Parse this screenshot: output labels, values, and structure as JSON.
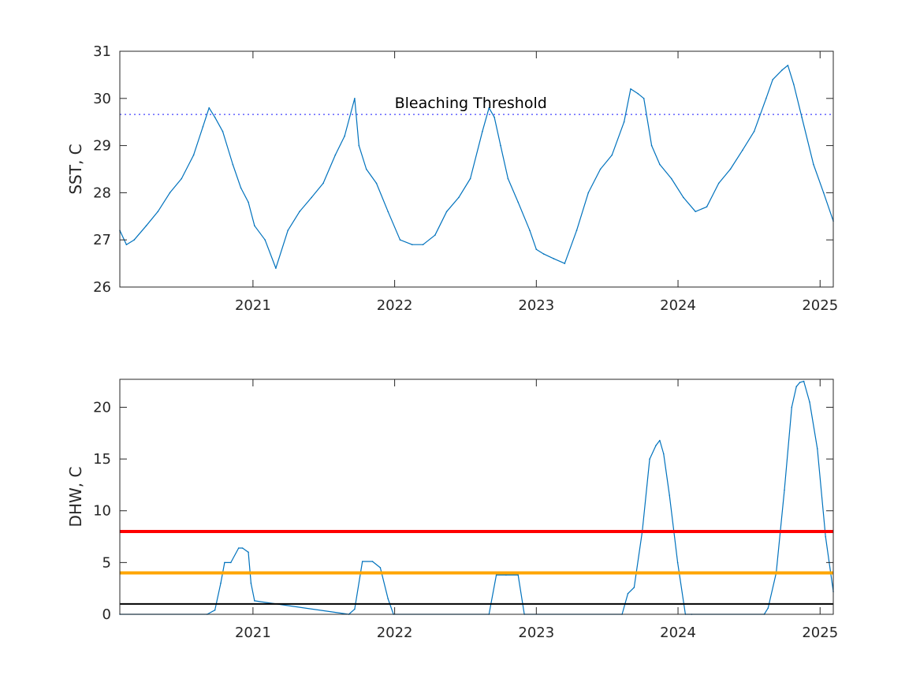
{
  "chart_data": [
    {
      "type": "line",
      "title": "",
      "xlabel": "",
      "ylabel": "SST, C",
      "xlim": [
        "2020-01-24",
        "2025-02-04"
      ],
      "ylim": [
        26,
        31
      ],
      "xticks": [
        "2021",
        "2022",
        "2023",
        "2024",
        "2025"
      ],
      "yticks": [
        "26",
        "27",
        "28",
        "29",
        "30",
        "31"
      ],
      "grid": false,
      "annotations": [
        {
          "text": "Bleaching Threshold",
          "x": "2022-01-01",
          "y": 29.8
        }
      ],
      "reference_lines": [
        {
          "y": 29.66,
          "style": "dotted",
          "color": "#4444ff"
        }
      ],
      "series": [
        {
          "color": "#0072bd",
          "x": [
            "2020-01-24",
            "2020-02-10",
            "2020-03-01",
            "2020-04-01",
            "2020-05-01",
            "2020-06-01",
            "2020-07-01",
            "2020-08-01",
            "2020-08-25",
            "2020-09-10",
            "2020-09-25",
            "2020-10-15",
            "2020-11-10",
            "2020-12-01",
            "2020-12-20",
            "2021-01-05",
            "2021-02-01",
            "2021-03-01",
            "2021-04-01",
            "2021-05-01",
            "2021-06-01",
            "2021-07-01",
            "2021-08-01",
            "2021-08-25",
            "2021-09-20",
            "2021-10-01",
            "2021-10-20",
            "2021-11-15",
            "2021-12-15",
            "2022-01-15",
            "2022-02-15",
            "2022-03-15",
            "2022-04-15",
            "2022-05-15",
            "2022-06-15",
            "2022-07-15",
            "2022-08-15",
            "2022-09-01",
            "2022-09-15",
            "2022-10-01",
            "2022-10-20",
            "2022-11-15",
            "2022-12-15",
            "2023-01-01",
            "2023-01-20",
            "2023-02-15",
            "2023-03-15",
            "2023-04-15",
            "2023-05-15",
            "2023-06-15",
            "2023-07-15",
            "2023-08-15",
            "2023-09-01",
            "2023-09-20",
            "2023-10-05",
            "2023-10-25",
            "2023-11-15",
            "2023-12-15",
            "2024-01-15",
            "2024-02-15",
            "2024-03-15",
            "2024-04-15",
            "2024-05-15",
            "2024-06-15",
            "2024-07-15",
            "2024-08-15",
            "2024-09-01",
            "2024-09-25",
            "2024-10-10",
            "2024-10-25",
            "2024-11-15",
            "2024-12-15",
            "2025-01-10",
            "2025-02-04"
          ],
          "y": [
            27.2,
            26.9,
            27.0,
            27.3,
            27.6,
            28.0,
            28.3,
            28.8,
            29.4,
            29.8,
            29.6,
            29.3,
            28.6,
            28.1,
            27.8,
            27.3,
            27.0,
            26.4,
            27.2,
            27.6,
            27.9,
            28.2,
            28.8,
            29.2,
            30.0,
            29.0,
            28.5,
            28.2,
            27.6,
            27.0,
            26.9,
            26.9,
            27.1,
            27.6,
            27.9,
            28.3,
            29.3,
            29.8,
            29.6,
            29.0,
            28.3,
            27.8,
            27.2,
            26.8,
            26.7,
            26.6,
            26.5,
            27.2,
            28.0,
            28.5,
            28.8,
            29.5,
            30.2,
            30.1,
            30.0,
            29.0,
            28.6,
            28.3,
            27.9,
            27.6,
            27.7,
            28.2,
            28.5,
            28.9,
            29.3,
            30.0,
            30.4,
            30.6,
            30.7,
            30.3,
            29.6,
            28.6,
            28.0,
            27.4
          ]
        }
      ]
    },
    {
      "type": "line",
      "title": "",
      "xlabel": "",
      "ylabel": "DHW, C",
      "xlim": [
        "2020-01-24",
        "2025-02-04"
      ],
      "ylim": [
        0,
        22.7
      ],
      "xticks": [
        "2021",
        "2022",
        "2023",
        "2024",
        "2025"
      ],
      "yticks": [
        "0",
        "5",
        "10",
        "15",
        "20"
      ],
      "grid": false,
      "reference_lines": [
        {
          "y": 8,
          "color": "#ff0000"
        },
        {
          "y": 4,
          "color": "#ffa500"
        },
        {
          "y": 1,
          "color": "#000000"
        }
      ],
      "series": [
        {
          "color": "#0072bd",
          "x": [
            "2020-01-24",
            "2020-09-05",
            "2020-09-25",
            "2020-10-10",
            "2020-10-20",
            "2020-11-05",
            "2020-11-25",
            "2020-12-05",
            "2020-12-20",
            "2020-12-27",
            "2021-01-05",
            "2021-09-05",
            "2021-09-20",
            "2021-10-10",
            "2021-11-05",
            "2021-11-25",
            "2021-12-15",
            "2021-12-29",
            "2022-09-01",
            "2022-09-20",
            "2022-10-15",
            "2022-11-15",
            "2022-12-01",
            "2023-08-10",
            "2023-08-25",
            "2023-09-10",
            "2023-10-01",
            "2023-10-20",
            "2023-11-05",
            "2023-11-15",
            "2023-11-25",
            "2023-12-10",
            "2023-12-31",
            "2024-01-20",
            "2024-02-05",
            "2024-08-10",
            "2024-08-20",
            "2024-09-10",
            "2024-10-01",
            "2024-10-20",
            "2024-11-01",
            "2024-11-10",
            "2024-11-20",
            "2024-12-05",
            "2024-12-25",
            "2025-01-15",
            "2025-02-04"
          ],
          "y": [
            0,
            0,
            0.4,
            3.0,
            5.0,
            5.0,
            6.4,
            6.4,
            6.0,
            3.0,
            1.3,
            0,
            0.5,
            5.1,
            5.1,
            4.5,
            1.5,
            0,
            0,
            3.8,
            3.8,
            3.8,
            0,
            0,
            2.0,
            2.6,
            8.0,
            15.0,
            16.3,
            16.8,
            15.5,
            11.5,
            5.0,
            0,
            0,
            0,
            0.6,
            4.0,
            12.0,
            20.0,
            22.0,
            22.4,
            22.5,
            20.5,
            16.0,
            7.5,
            2.2
          ]
        }
      ]
    }
  ]
}
